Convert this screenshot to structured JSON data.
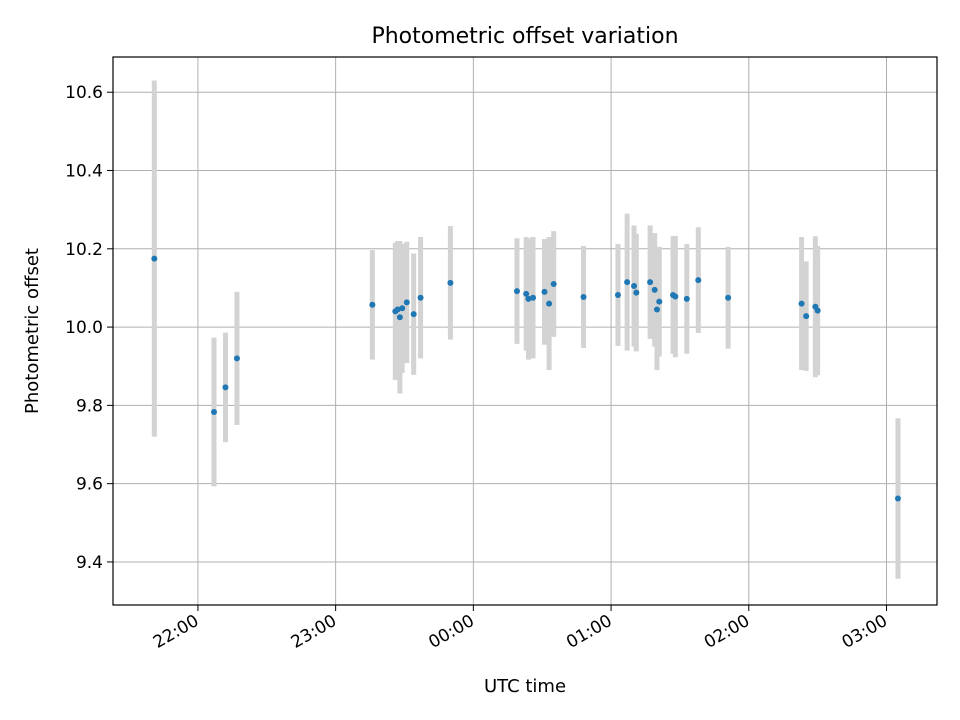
{
  "chart_data": {
    "type": "scatter",
    "title": "Photometric offset variation",
    "xlabel": "UTC time",
    "ylabel": "Photometric offset",
    "x_tick_labels": [
      "22:00",
      "23:00",
      "00:00",
      "01:00",
      "02:00",
      "03:00"
    ],
    "y_tick_labels": [
      "9.4",
      "9.6",
      "9.8",
      "10.0",
      "10.2",
      "10.4",
      "10.6"
    ],
    "xlim": [
      "21:23",
      "03:22"
    ],
    "ylim": [
      9.29,
      10.69
    ],
    "grid": true,
    "marker_color": "#1f77b4",
    "errorbar_color": "#d3d3d3",
    "series": [
      {
        "points": [
          {
            "x": "21:41",
            "y": 10.175,
            "yerr": 0.455
          },
          {
            "x": "22:07",
            "y": 9.783,
            "yerr": 0.19
          },
          {
            "x": "22:12",
            "y": 9.846,
            "yerr": 0.14
          },
          {
            "x": "22:17",
            "y": 9.92,
            "yerr": 0.17
          },
          {
            "x": "23:16",
            "y": 10.057,
            "yerr": 0.14
          },
          {
            "x": "23:26",
            "y": 10.04,
            "yerr": 0.175
          },
          {
            "x": "23:27",
            "y": 10.045,
            "yerr": 0.175
          },
          {
            "x": "23:28",
            "y": 10.025,
            "yerr": 0.195
          },
          {
            "x": "23:29",
            "y": 10.048,
            "yerr": 0.165
          },
          {
            "x": "23:31",
            "y": 10.063,
            "yerr": 0.155
          },
          {
            "x": "23:34",
            "y": 10.033,
            "yerr": 0.155
          },
          {
            "x": "23:37",
            "y": 10.075,
            "yerr": 0.155
          },
          {
            "x": "23:50",
            "y": 10.113,
            "yerr": 0.145
          },
          {
            "x": "00:19",
            "y": 10.092,
            "yerr": 0.135
          },
          {
            "x": "00:23",
            "y": 10.085,
            "yerr": 0.145
          },
          {
            "x": "00:24",
            "y": 10.072,
            "yerr": 0.155
          },
          {
            "x": "00:26",
            "y": 10.075,
            "yerr": 0.155
          },
          {
            "x": "00:31",
            "y": 10.09,
            "yerr": 0.135
          },
          {
            "x": "00:33",
            "y": 10.06,
            "yerr": 0.17
          },
          {
            "x": "00:35",
            "y": 10.11,
            "yerr": 0.135
          },
          {
            "x": "00:48",
            "y": 10.077,
            "yerr": 0.13
          },
          {
            "x": "01:03",
            "y": 10.082,
            "yerr": 0.13
          },
          {
            "x": "01:07",
            "y": 10.115,
            "yerr": 0.175
          },
          {
            "x": "01:10",
            "y": 10.105,
            "yerr": 0.155
          },
          {
            "x": "01:11",
            "y": 10.088,
            "yerr": 0.15
          },
          {
            "x": "01:17",
            "y": 10.115,
            "yerr": 0.145
          },
          {
            "x": "01:19",
            "y": 10.095,
            "yerr": 0.145
          },
          {
            "x": "01:20",
            "y": 10.045,
            "yerr": 0.155
          },
          {
            "x": "01:21",
            "y": 10.065,
            "yerr": 0.14
          },
          {
            "x": "01:27",
            "y": 10.082,
            "yerr": 0.15
          },
          {
            "x": "01:28",
            "y": 10.078,
            "yerr": 0.155
          },
          {
            "x": "01:33",
            "y": 10.072,
            "yerr": 0.14
          },
          {
            "x": "01:38",
            "y": 10.12,
            "yerr": 0.135
          },
          {
            "x": "01:51",
            "y": 10.075,
            "yerr": 0.13
          },
          {
            "x": "02:23",
            "y": 10.06,
            "yerr": 0.17
          },
          {
            "x": "02:25",
            "y": 10.028,
            "yerr": 0.14
          },
          {
            "x": "02:29",
            "y": 10.052,
            "yerr": 0.18
          },
          {
            "x": "02:30",
            "y": 10.042,
            "yerr": 0.165
          },
          {
            "x": "03:05",
            "y": 9.562,
            "yerr": 0.205
          }
        ]
      }
    ]
  }
}
